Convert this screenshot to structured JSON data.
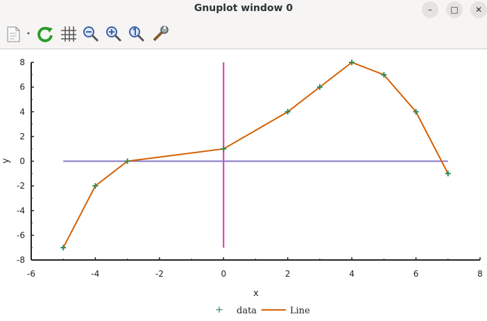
{
  "window": {
    "title": "Gnuplot window 0",
    "minimize_glyph": "–",
    "maximize_glyph": "□",
    "close_glyph": "✕"
  },
  "toolbar": {
    "icons": [
      "copy-to-clipboard-icon",
      "dropdown-arrow-icon",
      "replot-icon",
      "grid-icon",
      "zoom-out-icon",
      "zoom-in-icon",
      "zoom-previous-icon",
      "settings-icon"
    ]
  },
  "colors": {
    "data_points": "#2e8b57",
    "line": "#d45f00",
    "vertical": "#d633a8",
    "horizontal": "#8878c8"
  },
  "chart_data": {
    "type": "line",
    "xlabel": "x",
    "ylabel": "y",
    "xlim": [
      -6,
      8
    ],
    "ylim": [
      -8,
      8
    ],
    "x_ticks": [
      "-6",
      "-4",
      "-2",
      "0",
      "2",
      "4",
      "6",
      "8"
    ],
    "y_ticks": [
      "8",
      "6",
      "4",
      "2",
      "0",
      "-2",
      "-4",
      "-6",
      "-8"
    ],
    "grid": false,
    "legend_position": "bottom",
    "series": [
      {
        "name": "data",
        "style": "points",
        "x": [
          -5,
          -4,
          -3,
          0,
          2,
          3,
          4,
          5,
          6,
          7
        ],
        "y": [
          -7,
          -2,
          0,
          1,
          4,
          6,
          8,
          7,
          4,
          -1
        ]
      },
      {
        "name": "Line",
        "style": "line",
        "x": [
          -5,
          -4,
          -3,
          0,
          2,
          3,
          4,
          5,
          6,
          7
        ],
        "y": [
          -7,
          -2,
          0,
          1,
          4,
          6,
          8,
          7,
          4,
          -1
        ]
      }
    ],
    "reference_lines": [
      {
        "orientation": "vertical",
        "x": 0,
        "y_range": [
          -7,
          8
        ]
      },
      {
        "orientation": "horizontal",
        "y": 0,
        "x_range": [
          -5,
          7
        ]
      }
    ]
  }
}
